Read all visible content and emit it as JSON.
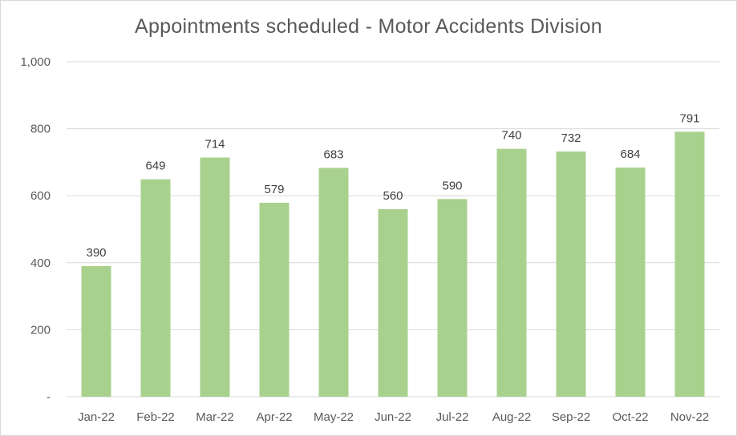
{
  "chart_data": {
    "type": "bar",
    "title": "Appointments scheduled - Motor Accidents Division",
    "categories": [
      "Jan-22",
      "Feb-22",
      "Mar-22",
      "Apr-22",
      "May-22",
      "Jun-22",
      "Jul-22",
      "Aug-22",
      "Sep-22",
      "Oct-22",
      "Nov-22"
    ],
    "values": [
      390,
      649,
      714,
      579,
      683,
      560,
      590,
      740,
      732,
      684,
      791
    ],
    "data_labels": [
      "390",
      "649",
      "714",
      "579",
      "683",
      "560",
      "590",
      "740",
      "732",
      "684",
      "791"
    ],
    "ylim": [
      0,
      1000
    ],
    "yticks": [
      0,
      200,
      400,
      600,
      800,
      1000
    ],
    "ytick_labels": [
      "-",
      "200",
      "400",
      "600",
      "800",
      "1,000"
    ],
    "xlabel": "",
    "ylabel": "",
    "grid": true,
    "legend": "none",
    "bar_color": "#a9d18e",
    "grid_color": "#d9d9d9"
  }
}
